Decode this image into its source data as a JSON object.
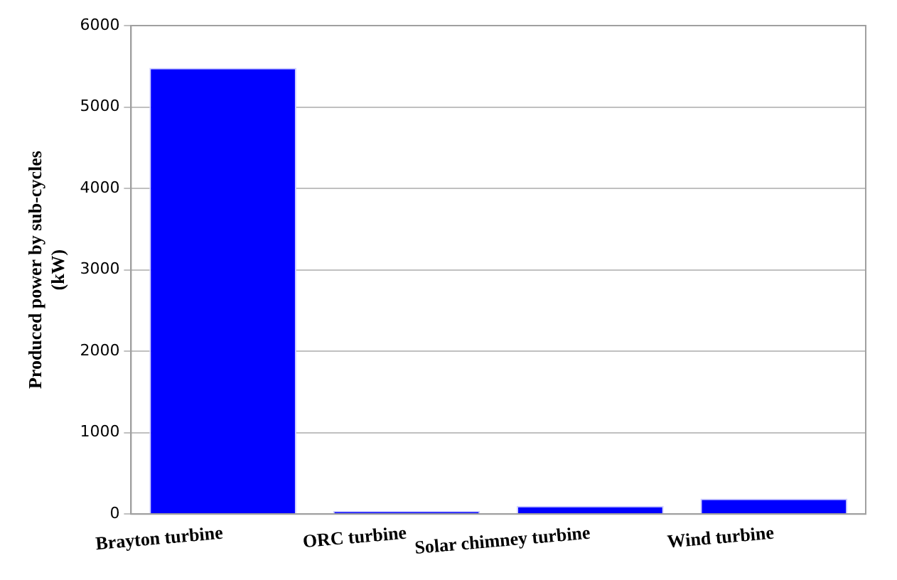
{
  "chart_data": {
    "type": "bar",
    "ylabel": "Produced power by sub-cycles\n(kW)",
    "categories": [
      "Brayton turbine",
      "ORC turbine",
      "Solar chimney turbine",
      "Wind turbine"
    ],
    "values": [
      5480,
      40,
      100,
      190
    ],
    "color": "#0000ff",
    "ylim": [
      0,
      6000
    ],
    "yticks": [
      0,
      1000,
      2000,
      3000,
      4000,
      5000,
      6000
    ],
    "grid": "y"
  }
}
